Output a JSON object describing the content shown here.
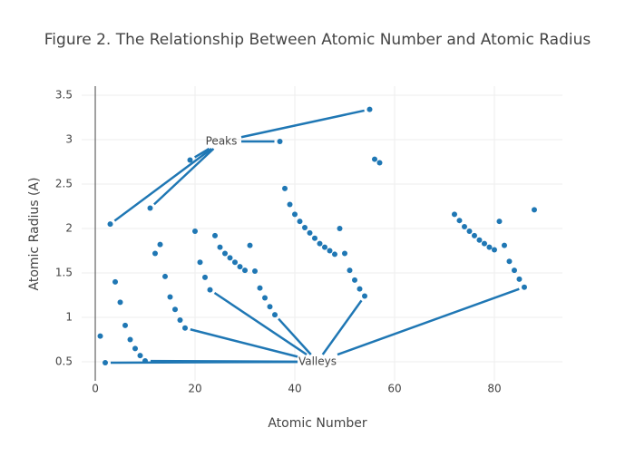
{
  "chart_data": {
    "type": "scatter",
    "title": "Figure 2. The Relationship Between Atomic Number and Atomic Radius",
    "x_label": "Atomic Number",
    "y_label": "Atomic Radius (A)",
    "x": [
      1,
      2,
      3,
      4,
      5,
      6,
      7,
      8,
      9,
      10,
      11,
      12,
      13,
      14,
      15,
      16,
      17,
      18,
      19,
      20,
      21,
      22,
      23,
      24,
      25,
      26,
      27,
      28,
      29,
      30,
      31,
      32,
      33,
      34,
      35,
      36,
      37,
      38,
      39,
      40,
      41,
      42,
      43,
      44,
      45,
      46,
      47,
      48,
      49,
      50,
      51,
      52,
      53,
      54,
      55,
      56,
      57,
      72,
      73,
      74,
      75,
      76,
      77,
      78,
      79,
      80,
      81,
      82,
      83,
      84,
      85,
      86,
      88
    ],
    "series": [
      {
        "color": "#1f77b4",
        "values": [
          0.79,
          0.49,
          2.05,
          1.4,
          1.17,
          0.91,
          0.75,
          0.65,
          0.57,
          0.51,
          2.23,
          1.72,
          1.82,
          1.46,
          1.23,
          1.09,
          0.97,
          0.88,
          2.77,
          1.97,
          1.62,
          1.45,
          1.31,
          1.92,
          1.79,
          1.72,
          1.67,
          1.62,
          1.57,
          1.53,
          1.81,
          1.52,
          1.33,
          1.22,
          1.12,
          1.03,
          2.98,
          2.45,
          2.27,
          2.16,
          2.08,
          2.01,
          1.95,
          1.89,
          1.83,
          1.79,
          1.75,
          1.71,
          2.0,
          1.72,
          1.53,
          1.42,
          1.32,
          1.24,
          3.34,
          2.78,
          2.74,
          2.16,
          2.09,
          2.02,
          1.97,
          1.92,
          1.87,
          1.83,
          1.79,
          1.76,
          2.08,
          1.81,
          1.63,
          1.53,
          1.43,
          1.34,
          2.21
        ]
      }
    ],
    "annotations": [
      {
        "text": "Peaks",
        "targets": [
          3,
          11,
          19,
          37,
          55
        ]
      },
      {
        "text": "Valleys",
        "targets": [
          2,
          10,
          18,
          23,
          36,
          54,
          86
        ]
      }
    ],
    "xlim": [
      -2.73,
      93.64
    ],
    "ylim": [
      0.286,
      3.602
    ],
    "xticks": [
      0,
      20,
      40,
      60,
      80
    ],
    "yticks": [
      0.5,
      1,
      1.5,
      2,
      2.5,
      3,
      3.5
    ],
    "grid": true
  }
}
